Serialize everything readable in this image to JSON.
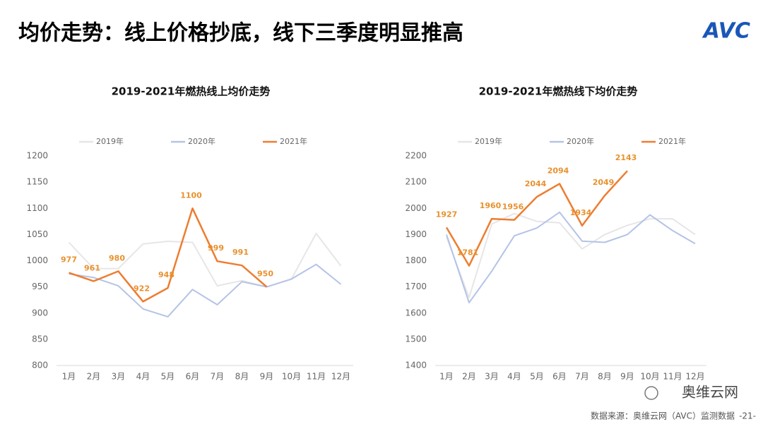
{
  "page_title": "均价走势：线上价格抄底，线下三季度明显推高",
  "logo": "AVC",
  "source": "数据来源：奥维云网（AVC）监测数据",
  "page_number": "-21-",
  "wechat": "奥维云网",
  "chart_data": [
    {
      "type": "line",
      "title": "2019-2021年燃热线上均价走势",
      "categories": [
        "1月",
        "2月",
        "3月",
        "4月",
        "5月",
        "6月",
        "7月",
        "8月",
        "9月",
        "10月",
        "11月",
        "12月"
      ],
      "ylim": [
        800,
        1200
      ],
      "yticks": [
        800,
        850,
        900,
        950,
        1000,
        1050,
        1100,
        1150,
        1200
      ],
      "legend": "top",
      "series": [
        {
          "name": "2019年",
          "color": "#e6e6e6",
          "values": [
            1035,
            985,
            985,
            1032,
            1037,
            1035,
            952,
            962,
            950,
            965,
            1052,
            990
          ]
        },
        {
          "name": "2020年",
          "color": "#b4c3e6",
          "values": [
            975,
            968,
            952,
            908,
            893,
            945,
            916,
            960,
            950,
            965,
            993,
            955
          ]
        },
        {
          "name": "2021年",
          "color": "#ed7d31",
          "data_labels": true,
          "values": [
            977,
            961,
            980,
            922,
            948,
            1100,
            999,
            991,
            950,
            null,
            null,
            null
          ]
        }
      ]
    },
    {
      "type": "line",
      "title": "2019-2021年燃热线下均价走势",
      "categories": [
        "1月",
        "2月",
        "3月",
        "4月",
        "5月",
        "6月",
        "7月",
        "8月",
        "9月",
        "10月",
        "11月",
        "12月"
      ],
      "ylim": [
        1400,
        2200
      ],
      "yticks": [
        1400,
        1500,
        1600,
        1700,
        1800,
        1900,
        2000,
        2100,
        2200
      ],
      "legend": "top",
      "series": [
        {
          "name": "2019年",
          "color": "#e6e6e6",
          "values": [
            1890,
            1660,
            1940,
            1980,
            1950,
            1945,
            1845,
            1900,
            1935,
            1960,
            1960,
            1900
          ]
        },
        {
          "name": "2020年",
          "color": "#b4c3e6",
          "values": [
            1900,
            1640,
            1760,
            1895,
            1925,
            1985,
            1875,
            1870,
            1900,
            1975,
            1915,
            1865
          ]
        },
        {
          "name": "2021年",
          "color": "#ed7d31",
          "data_labels": true,
          "values": [
            1927,
            1781,
            1960,
            1956,
            2044,
            2094,
            1934,
            2049,
            2143,
            null,
            null,
            null
          ]
        }
      ]
    }
  ]
}
